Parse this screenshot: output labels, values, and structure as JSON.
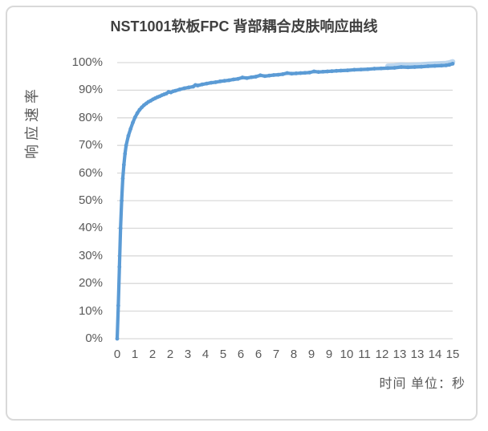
{
  "window": {
    "background": "#ffffff",
    "frame_border_color": "#d9d9d9"
  },
  "chart_data": {
    "type": "line",
    "title": "NST1001软板FPC 背部耦合皮肤响应曲线",
    "ylabel": "响应速率",
    "xlabel": "时间 单位：秒",
    "xlim": [
      0,
      15
    ],
    "ylim": [
      0,
      100
    ],
    "grid": true,
    "legend_position": "none",
    "line_color": "#5b9bd5",
    "line_highlight_color": "#a7c9e9",
    "gridline_color": "#d9d9d9",
    "text_color": "#595959",
    "title_color": "#404040",
    "y_tick_labels": [
      "0%",
      "10%",
      "20%",
      "30%",
      "40%",
      "50%",
      "60%",
      "70%",
      "80%",
      "90%",
      "100%"
    ],
    "x_tick_labels": [
      "0",
      "1",
      "2",
      "2",
      "3",
      "4",
      "5",
      "6",
      "6",
      "7",
      "8",
      "9",
      "9",
      "10",
      "11",
      "12",
      "13",
      "13",
      "14",
      "15"
    ],
    "series": [
      {
        "name": "响应速率",
        "points": [
          [
            0,
            0
          ],
          [
            0.05,
            12
          ],
          [
            0.1,
            26
          ],
          [
            0.15,
            40
          ],
          [
            0.2,
            50
          ],
          [
            0.25,
            58
          ],
          [
            0.3,
            63
          ],
          [
            0.35,
            67
          ],
          [
            0.4,
            70
          ],
          [
            0.5,
            73.5
          ],
          [
            0.6,
            76
          ],
          [
            0.7,
            78.3
          ],
          [
            0.8,
            80.2
          ],
          [
            0.9,
            81.7
          ],
          [
            1.0,
            82.9
          ],
          [
            1.1,
            83.8
          ],
          [
            1.2,
            84.6
          ],
          [
            1.3,
            85.2
          ],
          [
            1.4,
            85.8
          ],
          [
            1.5,
            86.2
          ],
          [
            1.6,
            86.7
          ],
          [
            1.7,
            87.1
          ],
          [
            1.8,
            87.5
          ],
          [
            1.9,
            87.8
          ],
          [
            2.0,
            88.2
          ],
          [
            2.1,
            88.5
          ],
          [
            2.2,
            88.8
          ],
          [
            2.3,
            89.4
          ],
          [
            2.4,
            89.2
          ],
          [
            2.5,
            89.6
          ],
          [
            2.6,
            89.8
          ],
          [
            2.8,
            90.3
          ],
          [
            3.0,
            90.7
          ],
          [
            3.2,
            91.0
          ],
          [
            3.4,
            91.3
          ],
          [
            3.5,
            91.9
          ],
          [
            3.6,
            91.7
          ],
          [
            3.8,
            92.1
          ],
          [
            4.0,
            92.4
          ],
          [
            4.2,
            92.7
          ],
          [
            4.4,
            92.9
          ],
          [
            4.6,
            93.2
          ],
          [
            4.8,
            93.4
          ],
          [
            5.0,
            93.6
          ],
          [
            5.2,
            93.9
          ],
          [
            5.4,
            94.1
          ],
          [
            5.6,
            94.6
          ],
          [
            5.8,
            94.4
          ],
          [
            6.0,
            94.7
          ],
          [
            6.2,
            94.9
          ],
          [
            6.4,
            95.4
          ],
          [
            6.6,
            95.1
          ],
          [
            6.8,
            95.3
          ],
          [
            7.0,
            95.5
          ],
          [
            7.2,
            95.6
          ],
          [
            7.4,
            95.8
          ],
          [
            7.6,
            96.2
          ],
          [
            7.8,
            96.0
          ],
          [
            8.0,
            96.1
          ],
          [
            8.2,
            96.2
          ],
          [
            8.4,
            96.3
          ],
          [
            8.6,
            96.4
          ],
          [
            8.8,
            96.8
          ],
          [
            9.0,
            96.6
          ],
          [
            9.2,
            96.7
          ],
          [
            9.4,
            96.8
          ],
          [
            9.6,
            96.9
          ],
          [
            9.8,
            97.0
          ],
          [
            10.0,
            97.1
          ],
          [
            10.3,
            97.2
          ],
          [
            10.6,
            97.4
          ],
          [
            10.9,
            97.5
          ],
          [
            11.2,
            97.6
          ],
          [
            11.5,
            97.8
          ],
          [
            11.8,
            97.9
          ],
          [
            12.1,
            98.0
          ],
          [
            12.4,
            98.1
          ],
          [
            12.7,
            98.4
          ],
          [
            13.0,
            98.3
          ],
          [
            13.3,
            98.4
          ],
          [
            13.6,
            98.5
          ],
          [
            13.9,
            98.7
          ],
          [
            14.2,
            98.8
          ],
          [
            14.5,
            98.9
          ],
          [
            14.7,
            99.0
          ],
          [
            14.85,
            99.2
          ],
          [
            15.0,
            99.6
          ]
        ]
      }
    ]
  }
}
